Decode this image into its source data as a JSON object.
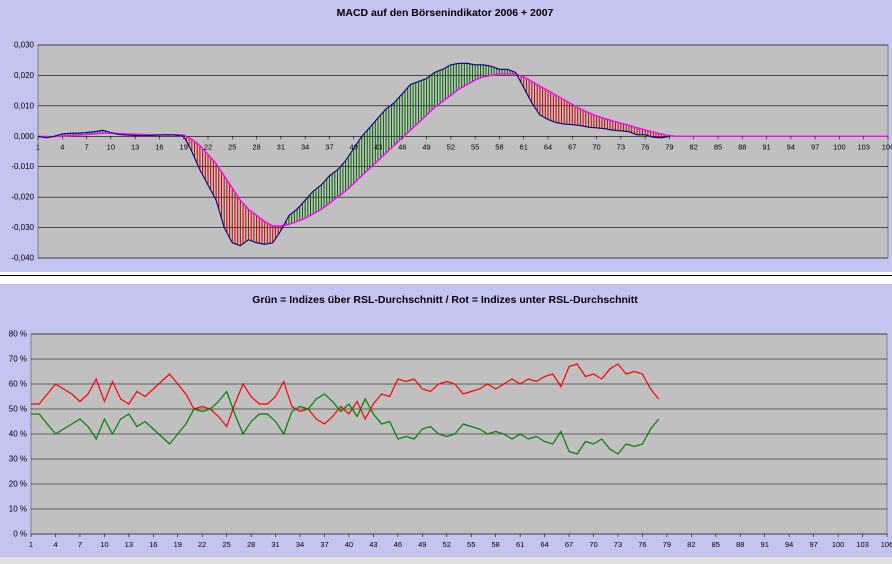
{
  "chart_data": [
    {
      "type": "line",
      "title": "MACD auf den Börsenindikator 2006 + 2007",
      "ylim": [
        -0.04,
        0.03
      ],
      "y_ticks": [
        "0,030",
        "0,020",
        "0,010",
        "0,000",
        "-0,010",
        "-0,020",
        "-0,030",
        "-0,040"
      ],
      "x_tick_labels": [
        "1",
        "4",
        "7",
        "10",
        "13",
        "16",
        "19",
        "22",
        "25",
        "28",
        "31",
        "34",
        "37",
        "40",
        "43",
        "46",
        "49",
        "52",
        "55",
        "58",
        "61",
        "64",
        "67",
        "70",
        "73",
        "76",
        "79",
        "82",
        "85",
        "88",
        "91",
        "94",
        "97",
        "100",
        "103",
        "106"
      ],
      "x_range": [
        1,
        106
      ],
      "grid": true,
      "colors": {
        "macd": "#000080",
        "signal": "#ff00ff",
        "positive_histogram": "#006400",
        "negative_histogram": "#cc0000",
        "plot_bg": "#c0c0c0"
      },
      "series": [
        {
          "key": "macd",
          "x": [
            1,
            2,
            3,
            4,
            5,
            6,
            7,
            8,
            9,
            10,
            11,
            12,
            13,
            14,
            15,
            16,
            17,
            18,
            19,
            20,
            21,
            22,
            23,
            24,
            25,
            26,
            27,
            28,
            29,
            30,
            31,
            32,
            33,
            34,
            35,
            36,
            37,
            38,
            39,
            40,
            41,
            42,
            43,
            44,
            45,
            46,
            47,
            48,
            49,
            50,
            51,
            52,
            53,
            54,
            55,
            56,
            57,
            58,
            59,
            60,
            61,
            62,
            63,
            64,
            65,
            66,
            67,
            68,
            69,
            70,
            71,
            72,
            73,
            74,
            75,
            76,
            77,
            78,
            79
          ],
          "values": [
            0.0,
            -0.0005,
            0.0,
            0.0008,
            0.001,
            0.001,
            0.0012,
            0.0015,
            0.002,
            0.0012,
            0.0006,
            0.0004,
            0.0003,
            0.0002,
            0.0003,
            0.0004,
            0.0005,
            0.0004,
            0.0,
            -0.005,
            -0.011,
            -0.016,
            -0.021,
            -0.03,
            -0.035,
            -0.036,
            -0.034,
            -0.035,
            -0.0355,
            -0.035,
            -0.031,
            -0.026,
            -0.024,
            -0.021,
            -0.018,
            -0.016,
            -0.013,
            -0.011,
            -0.008,
            -0.004,
            0.0,
            0.003,
            0.006,
            0.009,
            0.011,
            0.014,
            0.017,
            0.018,
            0.019,
            0.021,
            0.022,
            0.0235,
            0.024,
            0.024,
            0.0235,
            0.0235,
            0.023,
            0.022,
            0.022,
            0.021,
            0.016,
            0.011,
            0.007,
            0.0055,
            0.0045,
            0.004,
            0.0038,
            0.0035,
            0.003,
            0.0028,
            0.0025,
            0.002,
            0.0018,
            0.0015,
            0.0005,
            0.0005,
            -0.0003,
            -0.0005,
            0.0
          ]
        },
        {
          "key": "signal",
          "x": [
            1,
            2,
            3,
            4,
            5,
            6,
            7,
            8,
            9,
            10,
            11,
            12,
            13,
            14,
            15,
            16,
            17,
            18,
            19,
            20,
            21,
            22,
            23,
            24,
            25,
            26,
            27,
            28,
            29,
            30,
            31,
            32,
            33,
            34,
            35,
            36,
            37,
            38,
            39,
            40,
            41,
            42,
            43,
            44,
            45,
            46,
            47,
            48,
            49,
            50,
            51,
            52,
            53,
            54,
            55,
            56,
            57,
            58,
            59,
            60,
            61,
            62,
            63,
            64,
            65,
            66,
            67,
            68,
            69,
            70,
            71,
            72,
            73,
            74,
            75,
            76,
            77,
            78,
            79,
            80,
            81,
            82,
            83,
            84,
            85,
            86,
            87,
            88,
            89,
            90,
            91,
            92,
            93,
            94,
            95,
            96,
            97,
            98,
            99,
            100,
            101,
            102,
            103,
            104,
            105,
            106
          ],
          "values": [
            0.0,
            -0.0001,
            -0.0001,
            0.0001,
            0.0003,
            0.0004,
            0.0006,
            0.0008,
            0.001,
            0.001,
            0.0009,
            0.0008,
            0.0007,
            0.0006,
            0.0005,
            0.0005,
            0.0005,
            0.0005,
            0.0004,
            -0.001,
            -0.003,
            -0.006,
            -0.009,
            -0.013,
            -0.017,
            -0.021,
            -0.024,
            -0.026,
            -0.028,
            -0.0295,
            -0.0295,
            -0.029,
            -0.028,
            -0.027,
            -0.0255,
            -0.024,
            -0.022,
            -0.02,
            -0.018,
            -0.0155,
            -0.013,
            -0.0105,
            -0.008,
            -0.0055,
            -0.003,
            -0.0005,
            0.002,
            0.0045,
            0.007,
            0.0095,
            0.0115,
            0.0135,
            0.0155,
            0.017,
            0.0185,
            0.0195,
            0.02,
            0.0205,
            0.0205,
            0.0205,
            0.0195,
            0.018,
            0.0165,
            0.015,
            0.0135,
            0.012,
            0.0105,
            0.009,
            0.0078,
            0.0067,
            0.0058,
            0.005,
            0.0043,
            0.0036,
            0.0028,
            0.0021,
            0.0014,
            0.0008,
            0.0002,
            0.0,
            0.0,
            0.0,
            0.0,
            0.0,
            0.0,
            0.0,
            0.0,
            0.0,
            0.0,
            0.0,
            0.0,
            0.0,
            0.0,
            0.0,
            0.0,
            0.0,
            0.0,
            0.0,
            0.0,
            0.0,
            0.0,
            0.0,
            0.0,
            0.0,
            0.0,
            0.0
          ]
        }
      ]
    },
    {
      "type": "line",
      "title": "Grün = Indizes über RSL-Durchschnitt / Rot = Indizes unter RSL-Durchschnitt",
      "ylim": [
        0,
        80
      ],
      "y_ticks": [
        "80 %",
        "70 %",
        "60 %",
        "50 %",
        "40 %",
        "30 %",
        "20 %",
        "10 %",
        "0 %"
      ],
      "x_tick_labels": [
        "1",
        "4",
        "7",
        "10",
        "13",
        "16",
        "19",
        "22",
        "25",
        "28",
        "31",
        "34",
        "37",
        "40",
        "43",
        "46",
        "49",
        "52",
        "55",
        "58",
        "61",
        "64",
        "67",
        "70",
        "73",
        "76",
        "79",
        "82",
        "85",
        "88",
        "91",
        "94",
        "97",
        "100",
        "103",
        "106"
      ],
      "x_range": [
        1,
        106
      ],
      "grid": true,
      "colors": {
        "red": "#ff0000",
        "green": "#008000",
        "plot_bg": "#c0c0c0"
      },
      "series": [
        {
          "key": "red",
          "x": [
            1,
            2,
            3,
            4,
            5,
            6,
            7,
            8,
            9,
            10,
            11,
            12,
            13,
            14,
            15,
            16,
            17,
            18,
            19,
            20,
            21,
            22,
            23,
            24,
            25,
            26,
            27,
            28,
            29,
            30,
            31,
            32,
            33,
            34,
            35,
            36,
            37,
            38,
            39,
            40,
            41,
            42,
            43,
            44,
            45,
            46,
            47,
            48,
            49,
            50,
            51,
            52,
            53,
            54,
            55,
            56,
            57,
            58,
            59,
            60,
            61,
            62,
            63,
            64,
            65,
            66,
            67,
            68,
            69,
            70,
            71,
            72,
            73,
            74,
            75,
            76,
            77,
            78
          ],
          "values": [
            52,
            52,
            56,
            60,
            58,
            56,
            53,
            56,
            62,
            53,
            61,
            54,
            52,
            57,
            55,
            58,
            61,
            64,
            60,
            56,
            50,
            51,
            50,
            47,
            43,
            52,
            60,
            55,
            52,
            52,
            55,
            61,
            51,
            49,
            50,
            46,
            44,
            47,
            51,
            48,
            53,
            46,
            52,
            56,
            55,
            62,
            61,
            62,
            58,
            57,
            60,
            61,
            60,
            56,
            57,
            58,
            60,
            58,
            60,
            62,
            60,
            62,
            61,
            63,
            64,
            59,
            67,
            68,
            63,
            64,
            62,
            66,
            68,
            64,
            65,
            64,
            58,
            54
          ]
        },
        {
          "key": "green",
          "x": [
            1,
            2,
            3,
            4,
            5,
            6,
            7,
            8,
            9,
            10,
            11,
            12,
            13,
            14,
            15,
            16,
            17,
            18,
            19,
            20,
            21,
            22,
            23,
            24,
            25,
            26,
            27,
            28,
            29,
            30,
            31,
            32,
            33,
            34,
            35,
            36,
            37,
            38,
            39,
            40,
            41,
            42,
            43,
            44,
            45,
            46,
            47,
            48,
            49,
            50,
            51,
            52,
            53,
            54,
            55,
            56,
            57,
            58,
            59,
            60,
            61,
            62,
            63,
            64,
            65,
            66,
            67,
            68,
            69,
            70,
            71,
            72,
            73,
            74,
            75,
            76,
            77,
            78
          ],
          "values": [
            48,
            48,
            44,
            40,
            42,
            44,
            46,
            43,
            38,
            46,
            40,
            46,
            48,
            43,
            45,
            42,
            39,
            36,
            40,
            44,
            50,
            49,
            50,
            53,
            57,
            48,
            40,
            45,
            48,
            48,
            45,
            40,
            49,
            51,
            50,
            54,
            56,
            53,
            49,
            52,
            47,
            54,
            48,
            44,
            45,
            38,
            39,
            38,
            42,
            43,
            40,
            39,
            40,
            44,
            43,
            42,
            40,
            41,
            40,
            38,
            40,
            38,
            39,
            37,
            36,
            41,
            33,
            32,
            37,
            36,
            38,
            34,
            32,
            36,
            35,
            36,
            42,
            46
          ]
        }
      ]
    }
  ]
}
